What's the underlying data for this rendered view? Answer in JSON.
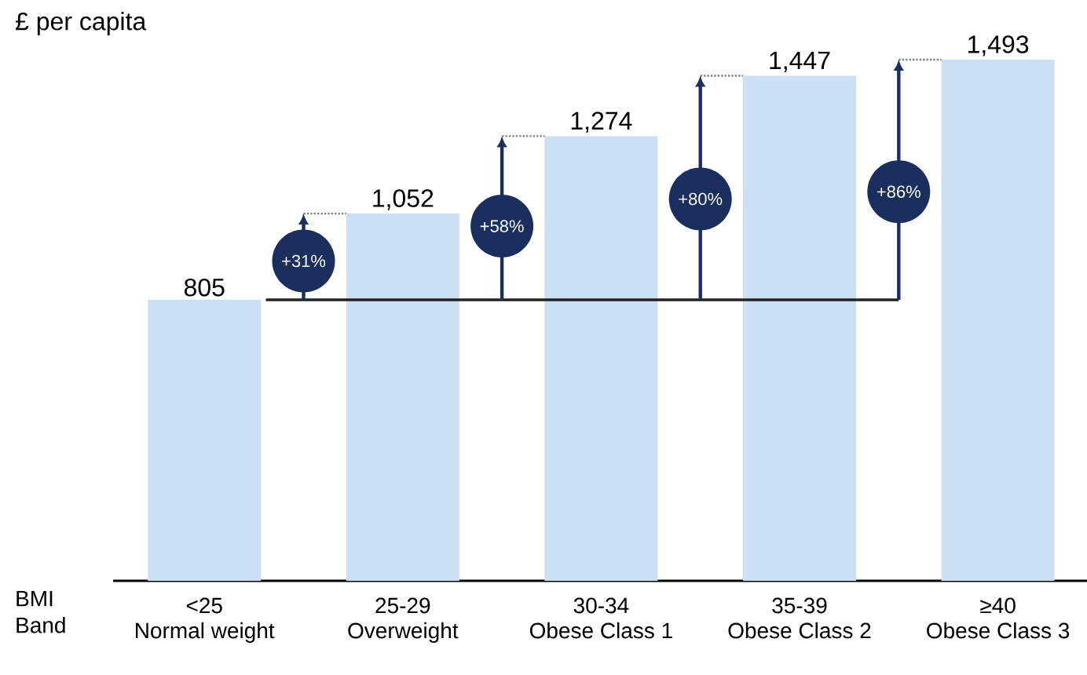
{
  "chart_data": {
    "type": "bar",
    "ylabel": "£ per capita",
    "xlabel": "BMI Band",
    "categories": [
      "<25\nNormal weight",
      "25-29\nOverweight",
      "30-34\nObese Class 1",
      "35-39\nObese Class 2",
      "≥40\nObese Class 3"
    ],
    "values": [
      805,
      1052,
      1274,
      1447,
      1493
    ],
    "color": "#cce0f5",
    "data_labels": true,
    "value_labels": [
      "805",
      "1,052",
      "1,274",
      "1,447",
      "1,493"
    ],
    "tick_labels": "x",
    "ref_lines": [
      {
        "axis": "y",
        "value": 805,
        "color": "#222222"
      }
    ],
    "annotations": [
      "+31%",
      "+58%",
      "+80%",
      "+86%"
    ]
  }
}
